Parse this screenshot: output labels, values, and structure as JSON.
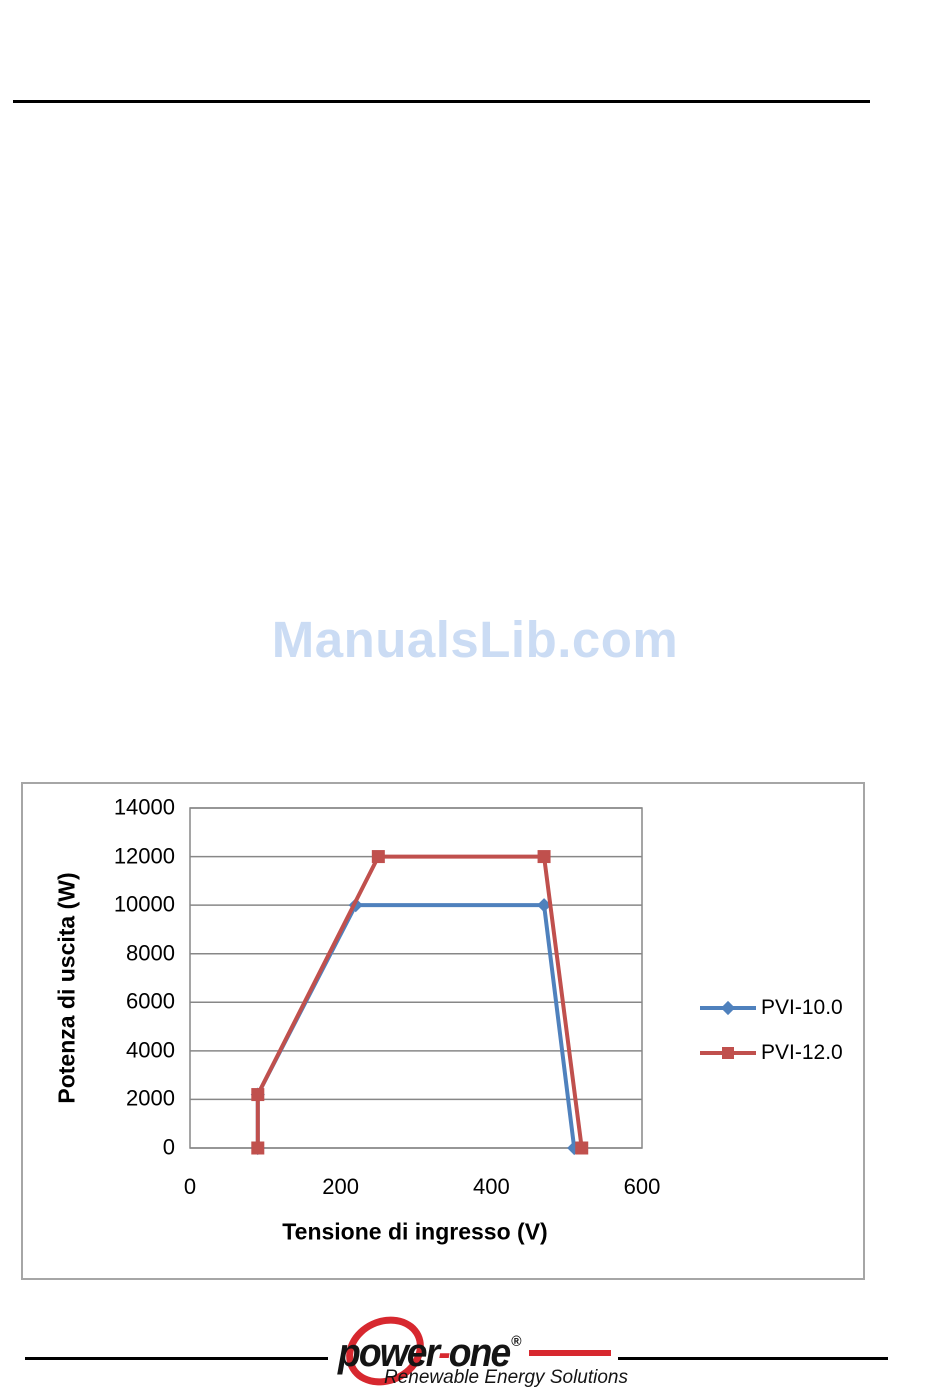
{
  "page": {
    "watermark": "ManualsLib.com"
  },
  "chart_data": {
    "type": "line",
    "title": "",
    "xlabel": "Tensione di ingresso (V)",
    "ylabel": "Potenza di uscita (W)",
    "xlim": [
      0,
      600
    ],
    "ylim": [
      0,
      14000
    ],
    "x_ticks": [
      0,
      200,
      400,
      600
    ],
    "y_ticks": [
      0,
      2000,
      4000,
      6000,
      8000,
      10000,
      12000,
      14000
    ],
    "grid": "horizontal gridlines on, vertical off",
    "legend_position": "right-middle, no border",
    "series": [
      {
        "name": "PVI-10.0",
        "color": "#4f81bd",
        "marker": "diamond",
        "points": [
          [
            90,
            0
          ],
          [
            90,
            2200
          ],
          [
            220,
            10000
          ],
          [
            470,
            10000
          ],
          [
            510,
            0
          ]
        ]
      },
      {
        "name": "PVI-12.0",
        "color": "#c0504d",
        "marker": "square",
        "points": [
          [
            90,
            0
          ],
          [
            90,
            2200
          ],
          [
            250,
            12000
          ],
          [
            470,
            12000
          ],
          [
            520,
            0
          ]
        ]
      }
    ],
    "colors": {
      "gridline": "#878787",
      "frame_border": "#a6a6a6"
    }
  },
  "footer": {
    "logo": {
      "brand_power": "power",
      "brand_hyphen": "-",
      "brand_one": "one",
      "registered": "®",
      "tagline": "Renewable Energy Solutions",
      "accent_color": "#d7282f"
    }
  }
}
